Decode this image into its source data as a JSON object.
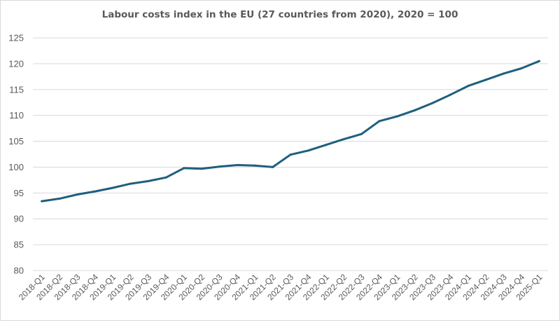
{
  "chart_data": {
    "type": "line",
    "title": "Labour costs index in the EU (27 countries from 2020), 2020 = 100",
    "xlabel": "",
    "ylabel": "",
    "ylim": [
      80,
      125
    ],
    "yticks": [
      80,
      85,
      90,
      95,
      100,
      105,
      110,
      115,
      120,
      125
    ],
    "grid": true,
    "legend": "none",
    "line_color": "#1f5f7f",
    "categories": [
      "2018-Q1",
      "2018-Q2",
      "2018-Q3",
      "2018-Q4",
      "2019-Q1",
      "2019-Q2",
      "2019-Q3",
      "2019-Q4",
      "2020-Q1",
      "2020-Q2",
      "2020-Q3",
      "2020-Q4",
      "2021-Q1",
      "2021-Q2",
      "2021-Q3",
      "2021-Q4",
      "2022-Q1",
      "2022-Q2",
      "2022-Q3",
      "2022-Q4",
      "2023-Q1",
      "2023-Q2",
      "2023-Q3",
      "2023-Q4",
      "2024-Q1",
      "2024-Q2",
      "2024-Q3",
      "2024-Q4",
      "2025-Q1"
    ],
    "series": [
      {
        "name": "Labour costs index",
        "values": [
          93.4,
          93.9,
          94.7,
          95.3,
          96.0,
          96.8,
          97.3,
          98.0,
          99.8,
          99.7,
          100.1,
          100.4,
          100.3,
          100.0,
          102.4,
          103.2,
          104.3,
          105.4,
          106.4,
          108.9,
          109.8,
          111.0,
          112.4,
          114.0,
          115.7,
          116.9,
          118.1,
          119.1,
          120.5
        ]
      }
    ]
  }
}
